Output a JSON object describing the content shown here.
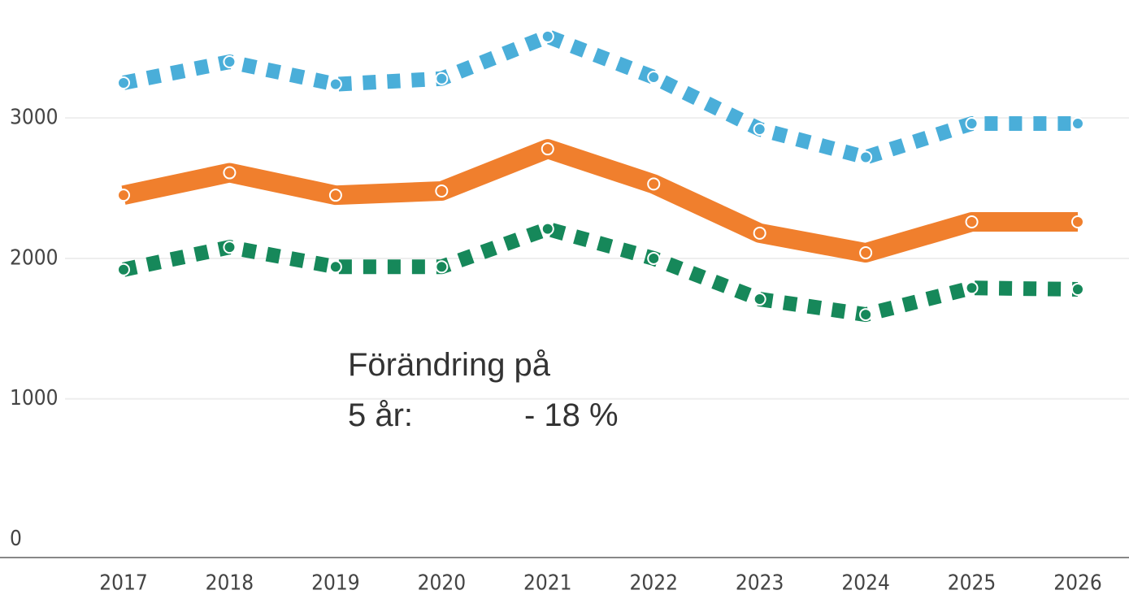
{
  "chart_data": {
    "type": "line",
    "x": [
      "2017",
      "2018",
      "2019",
      "2020",
      "2021",
      "2022",
      "2023",
      "2024",
      "2025",
      "2026"
    ],
    "series": [
      {
        "color": "#4aaed9",
        "style": "dotted",
        "values": [
          3250,
          3400,
          3240,
          3280,
          3580,
          3290,
          2920,
          2720,
          2960,
          2960
        ]
      },
      {
        "color": "#f07f2d",
        "style": "solid",
        "values": [
          2450,
          2610,
          2450,
          2480,
          2780,
          2530,
          2180,
          2040,
          2260,
          2260
        ]
      },
      {
        "color": "#16885a",
        "style": "dotted",
        "values": [
          1920,
          2080,
          1940,
          1940,
          2210,
          2000,
          1710,
          1600,
          1790,
          1780
        ]
      }
    ],
    "ylim": [
      -130,
      3840
    ],
    "yticks": [
      0,
      1000,
      2000,
      3000
    ],
    "grid": true,
    "annotation": [
      "Förändring på",
      "5 år:",
      "- 18 %"
    ]
  }
}
